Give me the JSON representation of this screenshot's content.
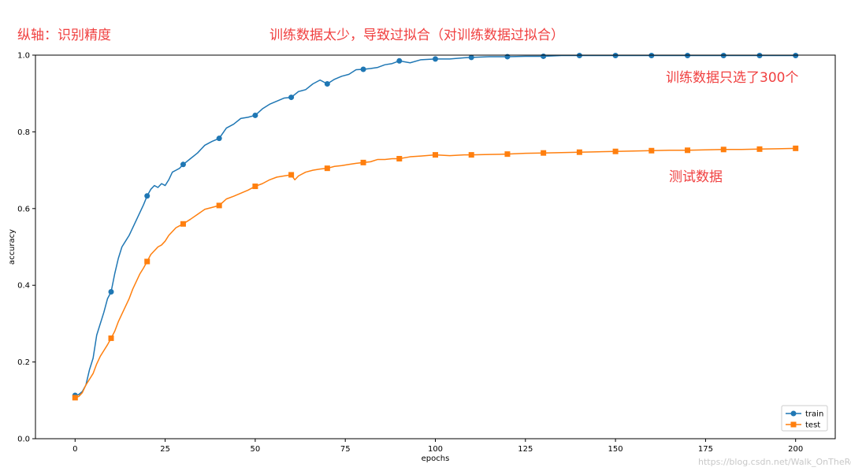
{
  "annotations": {
    "y_axis_note": "纵轴：识别精度",
    "title_note": "训练数据太少，导致过拟合（对训练数据过拟合）",
    "train_note": "训练数据只选了300个",
    "test_note": "测试数据"
  },
  "watermark": "https://blog.csdn.net/Walk_OnTheRoad",
  "colors": {
    "annotation": "#f04040",
    "train": "#1f77b4",
    "test": "#ff7f0e"
  },
  "chart_data": {
    "type": "line",
    "xlabel": "epochs",
    "ylabel": "accuracy",
    "xlim": [
      -11,
      211
    ],
    "ylim": [
      0,
      1.0
    ],
    "xticks": [
      0,
      25,
      50,
      75,
      100,
      125,
      150,
      175,
      200
    ],
    "yticks": [
      0.0,
      0.2,
      0.4,
      0.6,
      0.8,
      1.0
    ],
    "ytick_labels": [
      "0.0",
      "0.2",
      "0.4",
      "0.6",
      "0.8",
      "1.0"
    ],
    "legend": {
      "placement": "lower-right",
      "entries": [
        "train",
        "test"
      ]
    },
    "grid": false,
    "series": [
      {
        "name": "train",
        "marker": "circle",
        "points": [
          [
            0,
            0.113
          ],
          [
            1,
            0.115
          ],
          [
            2,
            0.123
          ],
          [
            3,
            0.14
          ],
          [
            4,
            0.18
          ],
          [
            5,
            0.21
          ],
          [
            6,
            0.27
          ],
          [
            7,
            0.3
          ],
          [
            8,
            0.33
          ],
          [
            9,
            0.365
          ],
          [
            10,
            0.383
          ],
          [
            11,
            0.43
          ],
          [
            12,
            0.47
          ],
          [
            13,
            0.5
          ],
          [
            14,
            0.515
          ],
          [
            15,
            0.53
          ],
          [
            16,
            0.55
          ],
          [
            17,
            0.57
          ],
          [
            18,
            0.59
          ],
          [
            19,
            0.61
          ],
          [
            20,
            0.633
          ],
          [
            21,
            0.65
          ],
          [
            22,
            0.66
          ],
          [
            23,
            0.655
          ],
          [
            24,
            0.665
          ],
          [
            25,
            0.66
          ],
          [
            26,
            0.675
          ],
          [
            27,
            0.695
          ],
          [
            28,
            0.7
          ],
          [
            29,
            0.705
          ],
          [
            30,
            0.715
          ],
          [
            32,
            0.73
          ],
          [
            34,
            0.745
          ],
          [
            36,
            0.765
          ],
          [
            38,
            0.775
          ],
          [
            40,
            0.783
          ],
          [
            42,
            0.81
          ],
          [
            44,
            0.82
          ],
          [
            46,
            0.835
          ],
          [
            48,
            0.838
          ],
          [
            50,
            0.843
          ],
          [
            52,
            0.86
          ],
          [
            54,
            0.872
          ],
          [
            56,
            0.88
          ],
          [
            58,
            0.888
          ],
          [
            60,
            0.89
          ],
          [
            62,
            0.905
          ],
          [
            64,
            0.91
          ],
          [
            66,
            0.925
          ],
          [
            68,
            0.935
          ],
          [
            70,
            0.925
          ],
          [
            72,
            0.937
          ],
          [
            74,
            0.945
          ],
          [
            76,
            0.95
          ],
          [
            78,
            0.962
          ],
          [
            80,
            0.963
          ],
          [
            82,
            0.965
          ],
          [
            84,
            0.968
          ],
          [
            86,
            0.975
          ],
          [
            88,
            0.978
          ],
          [
            90,
            0.985
          ],
          [
            93,
            0.98
          ],
          [
            96,
            0.988
          ],
          [
            100,
            0.99
          ],
          [
            104,
            0.99
          ],
          [
            108,
            0.993
          ],
          [
            110,
            0.994
          ],
          [
            115,
            0.996
          ],
          [
            120,
            0.996
          ],
          [
            125,
            0.997
          ],
          [
            130,
            0.997
          ],
          [
            135,
            0.999
          ],
          [
            140,
            0.999
          ],
          [
            145,
            0.999
          ],
          [
            150,
            0.999
          ],
          [
            160,
            0.999
          ],
          [
            170,
            0.999
          ],
          [
            180,
            0.999
          ],
          [
            190,
            0.999
          ],
          [
            200,
            0.999
          ]
        ],
        "markers": [
          [
            0,
            0.113
          ],
          [
            10,
            0.383
          ],
          [
            20,
            0.633
          ],
          [
            30,
            0.715
          ],
          [
            40,
            0.783
          ],
          [
            50,
            0.843
          ],
          [
            60,
            0.89
          ],
          [
            70,
            0.925
          ],
          [
            80,
            0.963
          ],
          [
            90,
            0.985
          ],
          [
            100,
            0.99
          ],
          [
            110,
            0.994
          ],
          [
            120,
            0.996
          ],
          [
            130,
            0.997
          ],
          [
            140,
            0.999
          ],
          [
            150,
            0.999
          ],
          [
            160,
            0.999
          ],
          [
            170,
            0.999
          ],
          [
            180,
            0.999
          ],
          [
            190,
            0.999
          ],
          [
            200,
            0.999
          ]
        ]
      },
      {
        "name": "test",
        "marker": "square",
        "points": [
          [
            0,
            0.107
          ],
          [
            1,
            0.11
          ],
          [
            2,
            0.12
          ],
          [
            3,
            0.14
          ],
          [
            4,
            0.155
          ],
          [
            5,
            0.17
          ],
          [
            6,
            0.195
          ],
          [
            7,
            0.215
          ],
          [
            8,
            0.23
          ],
          [
            9,
            0.245
          ],
          [
            10,
            0.262
          ],
          [
            11,
            0.28
          ],
          [
            12,
            0.305
          ],
          [
            13,
            0.325
          ],
          [
            14,
            0.345
          ],
          [
            15,
            0.365
          ],
          [
            16,
            0.39
          ],
          [
            17,
            0.41
          ],
          [
            18,
            0.43
          ],
          [
            19,
            0.445
          ],
          [
            20,
            0.462
          ],
          [
            21,
            0.48
          ],
          [
            22,
            0.49
          ],
          [
            23,
            0.5
          ],
          [
            24,
            0.505
          ],
          [
            25,
            0.515
          ],
          [
            26,
            0.53
          ],
          [
            27,
            0.54
          ],
          [
            28,
            0.55
          ],
          [
            29,
            0.555
          ],
          [
            30,
            0.56
          ],
          [
            32,
            0.572
          ],
          [
            34,
            0.585
          ],
          [
            36,
            0.598
          ],
          [
            38,
            0.603
          ],
          [
            40,
            0.608
          ],
          [
            42,
            0.625
          ],
          [
            44,
            0.632
          ],
          [
            46,
            0.64
          ],
          [
            48,
            0.648
          ],
          [
            50,
            0.658
          ],
          [
            52,
            0.665
          ],
          [
            54,
            0.675
          ],
          [
            56,
            0.682
          ],
          [
            58,
            0.685
          ],
          [
            60,
            0.688
          ],
          [
            61,
            0.675
          ],
          [
            62,
            0.685
          ],
          [
            64,
            0.695
          ],
          [
            66,
            0.7
          ],
          [
            68,
            0.703
          ],
          [
            70,
            0.705
          ],
          [
            72,
            0.71
          ],
          [
            74,
            0.712
          ],
          [
            76,
            0.715
          ],
          [
            78,
            0.718
          ],
          [
            80,
            0.72
          ],
          [
            82,
            0.722
          ],
          [
            84,
            0.728
          ],
          [
            86,
            0.728
          ],
          [
            88,
            0.73
          ],
          [
            90,
            0.73
          ],
          [
            93,
            0.735
          ],
          [
            96,
            0.737
          ],
          [
            100,
            0.74
          ],
          [
            104,
            0.738
          ],
          [
            108,
            0.74
          ],
          [
            110,
            0.74
          ],
          [
            115,
            0.741
          ],
          [
            120,
            0.742
          ],
          [
            125,
            0.744
          ],
          [
            130,
            0.745
          ],
          [
            135,
            0.746
          ],
          [
            140,
            0.747
          ],
          [
            145,
            0.748
          ],
          [
            150,
            0.749
          ],
          [
            155,
            0.75
          ],
          [
            160,
            0.751
          ],
          [
            165,
            0.752
          ],
          [
            170,
            0.752
          ],
          [
            175,
            0.753
          ],
          [
            180,
            0.754
          ],
          [
            185,
            0.754
          ],
          [
            190,
            0.755
          ],
          [
            195,
            0.756
          ],
          [
            200,
            0.757
          ]
        ],
        "markers": [
          [
            0,
            0.107
          ],
          [
            10,
            0.262
          ],
          [
            20,
            0.462
          ],
          [
            30,
            0.56
          ],
          [
            40,
            0.608
          ],
          [
            50,
            0.658
          ],
          [
            60,
            0.688
          ],
          [
            70,
            0.705
          ],
          [
            80,
            0.72
          ],
          [
            90,
            0.73
          ],
          [
            100,
            0.74
          ],
          [
            110,
            0.74
          ],
          [
            120,
            0.742
          ],
          [
            130,
            0.745
          ],
          [
            140,
            0.747
          ],
          [
            150,
            0.749
          ],
          [
            160,
            0.751
          ],
          [
            170,
            0.752
          ],
          [
            180,
            0.754
          ],
          [
            190,
            0.755
          ],
          [
            200,
            0.757
          ]
        ]
      }
    ]
  }
}
